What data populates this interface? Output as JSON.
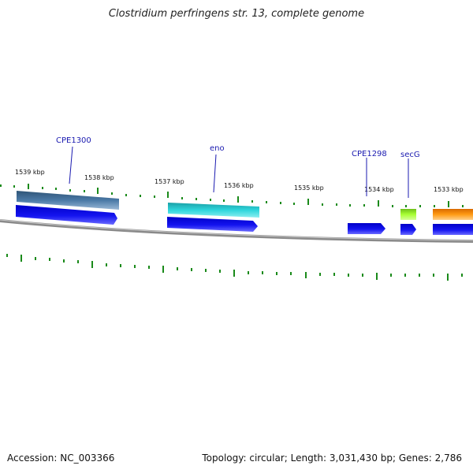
{
  "title": "Clostridium perfringens str. 13, complete genome",
  "footer": {
    "accession": "Accession: NC_003366",
    "summary": "Topology: circular; Length: 3,031,430 bp; Genes: 2,786"
  },
  "colors": {
    "tick": "#1a8a1a",
    "backbone": "#8a8a8a",
    "cds": "#1010e0",
    "gene_label": "#1a1ab0"
  },
  "tick_labels": [
    "1539 kbp",
    "1538 kbp",
    "1537 kbp",
    "1536 kbp",
    "1535 kbp",
    "1534 kbp",
    "1533 kbp"
  ],
  "gene_labels": [
    "CPE1300",
    "eno",
    "CPE1298",
    "secG"
  ]
}
